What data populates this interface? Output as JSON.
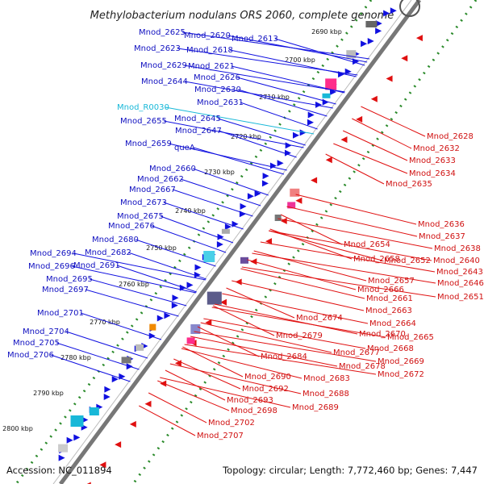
{
  "title": "Methylobacterium nodulans ORS 2060, complete genome",
  "footer": {
    "accession": "Accession: NC_011894",
    "summary": "Topology: circular; Length: 7,772,460 bp; Genes: 7,447"
  },
  "ticks": [
    "2690 kbp",
    "2700 kbp",
    "2710 kbp",
    "2720 kbp",
    "2730 kbp",
    "2740 kbp",
    "2750 kbp",
    "2760 kbp",
    "2770 kbp",
    "2780 kbp",
    "2790 kbp",
    "2800 kbp"
  ],
  "left_labels": [
    "Mnod_2625",
    "Mnod_2620",
    "Mnod_2613",
    "Mnod_2623",
    "Mnod_2618",
    "Mnod_2629",
    "Mnod_2621",
    "Mnod_2644",
    "Mnod_2626",
    "Mnod_2630",
    "Mnod_2631",
    "Mnod_R0030",
    "Mnod_2645",
    "Mnod_2655",
    "Mnod_2647",
    "Mnod_2659",
    "queA",
    "Mnod_2660",
    "Mnod_2662",
    "Mnod_2667",
    "Mnod_2673",
    "Mnod_2675",
    "Mnod_2676",
    "Mnod_2680",
    "Mnod_2682",
    "Mnod_2694",
    "Mnod_2691",
    "Mnod_2696",
    "Mnod_2695",
    "Mnod_2697",
    "Mnod_2701",
    "Mnod_2704",
    "Mnod_2705",
    "Mnod_2706"
  ],
  "right_labels": [
    "Mnod_2628",
    "Mnod_2632",
    "Mnod_2633",
    "Mnod_2634",
    "Mnod_2635",
    "Mnod_2636",
    "Mnod_2637",
    "Mnod_2638",
    "Mnod_2654",
    "Mnod_2640",
    "Mnod_2658",
    "Mnod_2652",
    "Mnod_2643",
    "Mnod_2646",
    "Mnod_2657",
    "Mnod_2651",
    "Mnod_2666",
    "Mnod_2661",
    "Mnod_2663",
    "Mnod_2664",
    "Mnod_2674",
    "Mnod_2670",
    "Mnod_2665",
    "Mnod_2679",
    "Mnod_2668",
    "Mnod_2677",
    "Mnod_2684",
    "Mnod_2669",
    "Mnod_2678",
    "Mnod_2672",
    "Mnod_2683",
    "Mnod_2690",
    "Mnod_2688",
    "Mnod_2692",
    "Mnod_2693",
    "Mnod_2689",
    "Mnod_2698",
    "Mnod_2702",
    "Mnod_2707"
  ],
  "colors": {
    "forward": "#1010e0",
    "reverse": "#e01010",
    "backbone": "#777777",
    "gc": "#2a8a2a",
    "cyan": "#18b8d8"
  }
}
